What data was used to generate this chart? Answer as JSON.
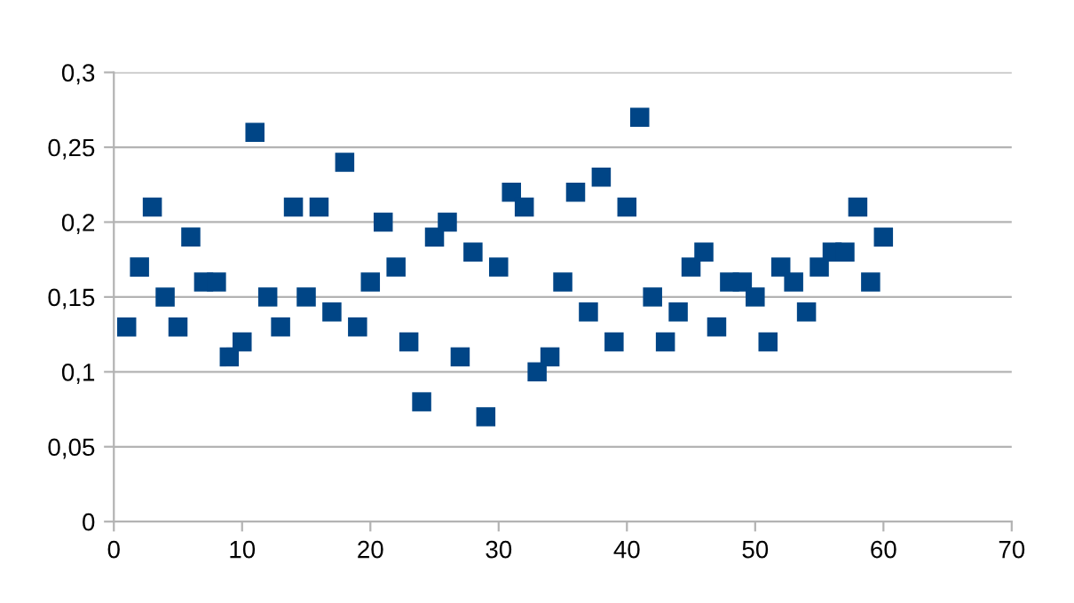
{
  "chart_data": {
    "type": "scatter",
    "marker": "square",
    "grid": "y",
    "x": [
      1,
      2,
      3,
      4,
      5,
      6,
      7,
      8,
      9,
      10,
      11,
      12,
      13,
      14,
      15,
      16,
      17,
      18,
      19,
      20,
      21,
      22,
      23,
      24,
      25,
      26,
      27,
      28,
      29,
      30,
      31,
      32,
      33,
      34,
      35,
      36,
      37,
      38,
      39,
      40,
      41,
      42,
      43,
      44,
      45,
      46,
      47,
      48,
      49,
      50,
      51,
      52,
      53,
      54,
      55,
      56,
      57,
      58,
      59,
      60
    ],
    "series": [
      {
        "color": "#004586",
        "values": [
          0.13,
          0.17,
          0.21,
          0.15,
          0.13,
          0.19,
          0.16,
          0.16,
          0.11,
          0.12,
          0.26,
          0.15,
          0.13,
          0.21,
          0.15,
          0.21,
          0.14,
          0.24,
          0.13,
          0.16,
          0.2,
          0.17,
          0.12,
          0.08,
          0.19,
          0.2,
          0.11,
          0.18,
          0.07,
          0.17,
          0.22,
          0.21,
          0.1,
          0.11,
          0.16,
          0.22,
          0.14,
          0.23,
          0.12,
          0.21,
          0.27,
          0.15,
          0.12,
          0.14,
          0.17,
          0.18,
          0.13,
          0.16,
          0.16,
          0.15,
          0.12,
          0.17,
          0.16,
          0.14,
          0.17,
          0.18,
          0.18,
          0.21,
          0.16,
          0.19
        ]
      }
    ],
    "xlim": [
      0,
      70
    ],
    "xticks": [
      0,
      10,
      20,
      30,
      40,
      50,
      60,
      70
    ],
    "ylim": [
      0,
      0.3
    ],
    "yticks": [
      0,
      {
        "value": 0.05,
        "label": "0,05"
      },
      {
        "value": 0.1,
        "label": "0,1"
      },
      {
        "value": 0.15,
        "label": "0,15"
      },
      {
        "value": 0.2,
        "label": "0,2"
      },
      {
        "value": 0.25,
        "label": "0,25"
      },
      {
        "value": 0.3,
        "label": "0,3"
      }
    ]
  }
}
